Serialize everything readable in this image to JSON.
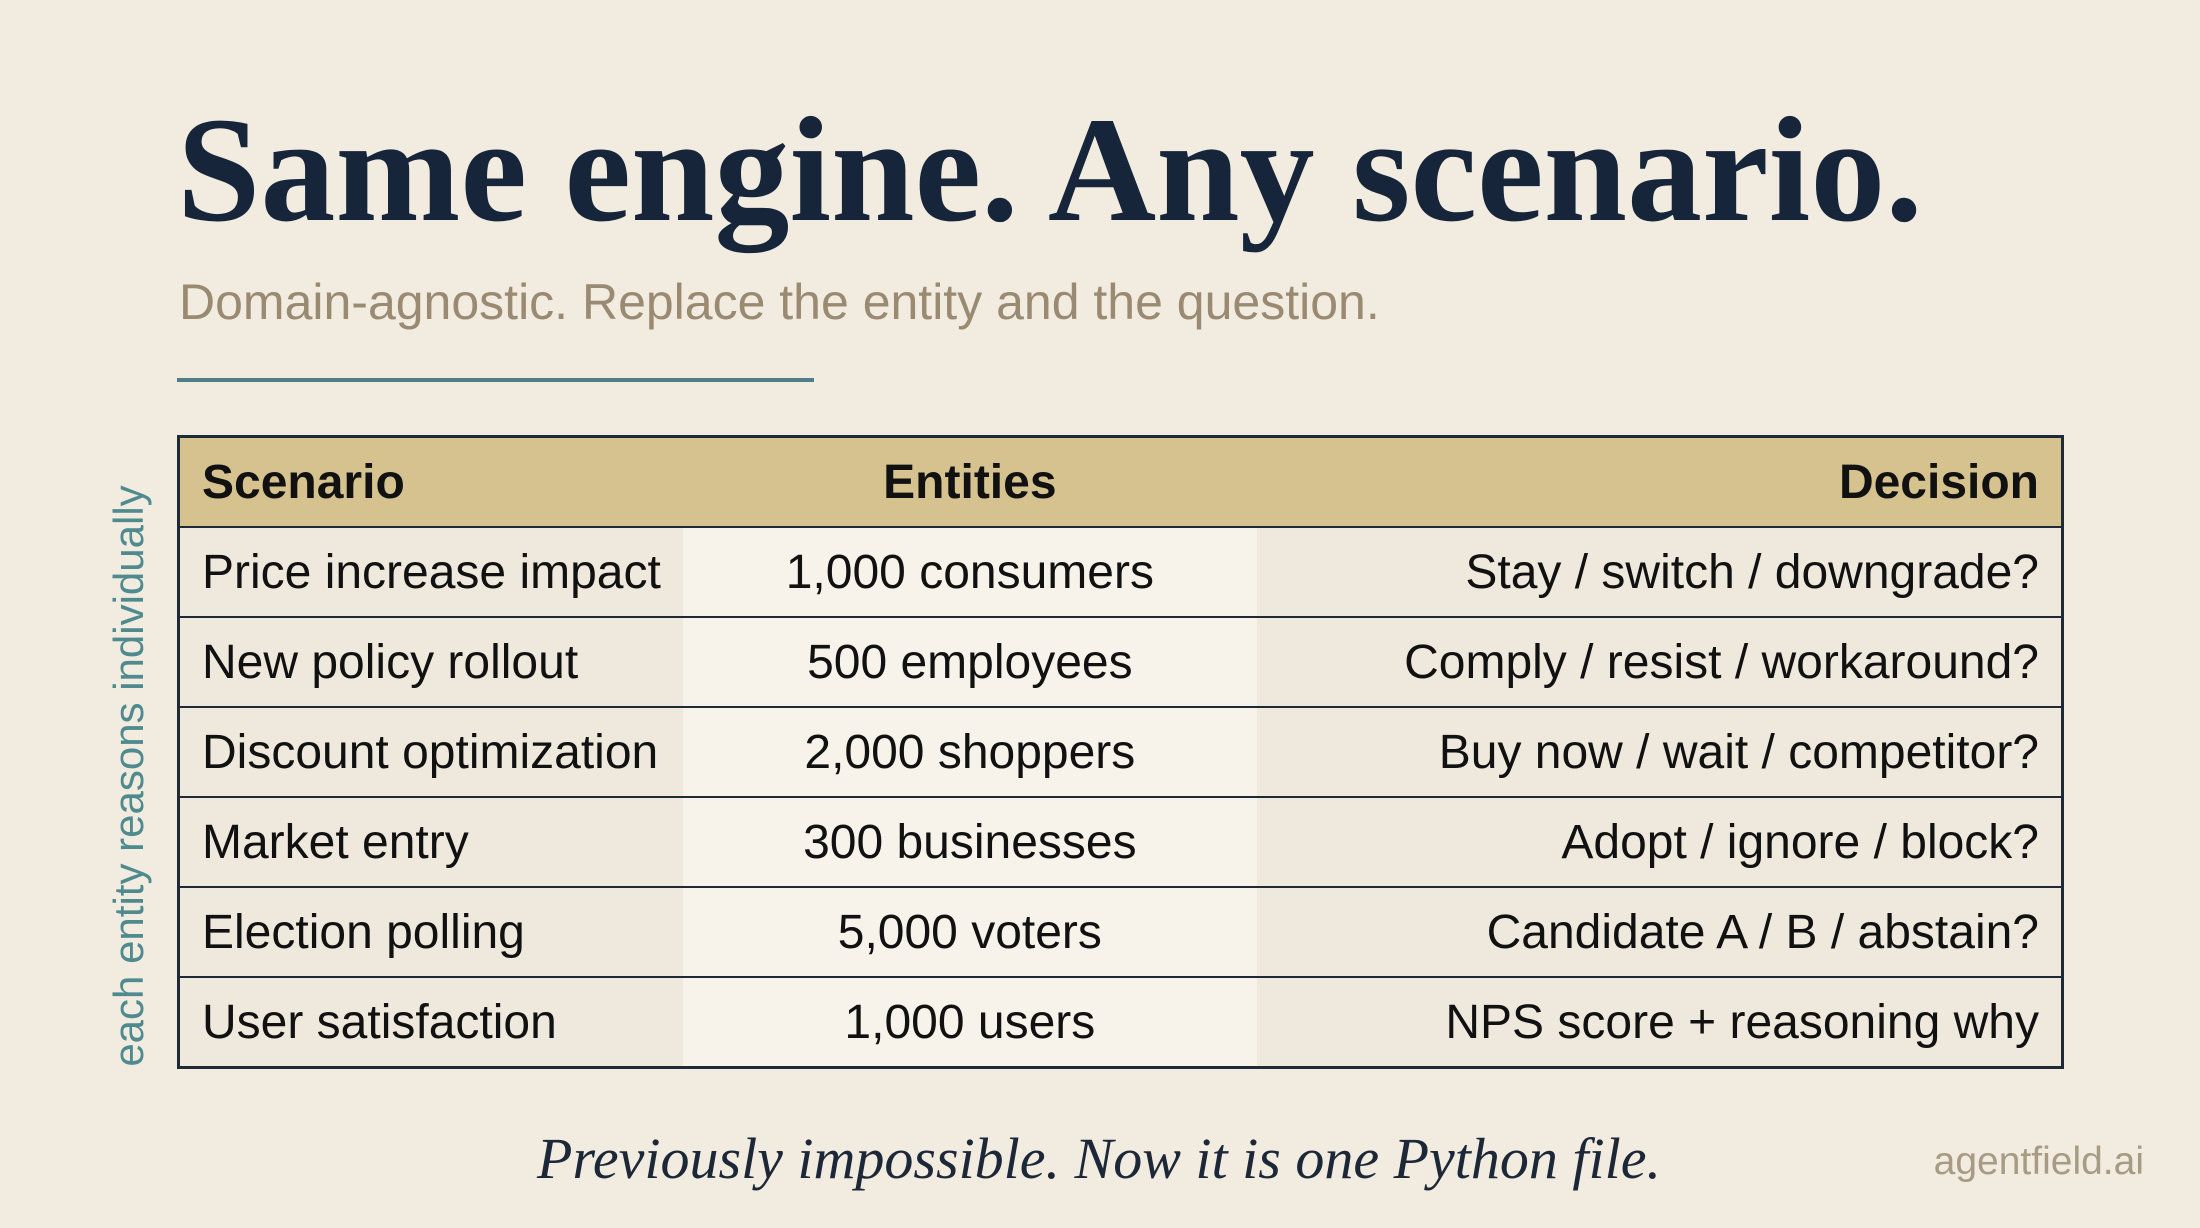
{
  "header": {
    "title": "Same engine. Any scenario.",
    "subtitle": "Domain-agnostic. Replace the entity and the question."
  },
  "side_note": "each entity reasons individually",
  "table": {
    "columns": [
      "Scenario",
      "Entities",
      "Decision"
    ],
    "rows": [
      [
        "Price increase impact",
        "1,000 consumers",
        "Stay / switch / downgrade?"
      ],
      [
        "New policy rollout",
        "500 employees",
        "Comply / resist / workaround?"
      ],
      [
        "Discount optimization",
        "2,000 shoppers",
        "Buy now / wait / competitor?"
      ],
      [
        "Market entry",
        "300 businesses",
        "Adopt / ignore / block?"
      ],
      [
        "Election polling",
        "5,000 voters",
        "Candidate A / B / abstain?"
      ],
      [
        "User satisfaction",
        "1,000 users",
        "NPS score + reasoning why"
      ]
    ]
  },
  "footer": {
    "tagline": "Previously impossible. Now it is one Python file.",
    "brand": "agentfield.ai"
  }
}
